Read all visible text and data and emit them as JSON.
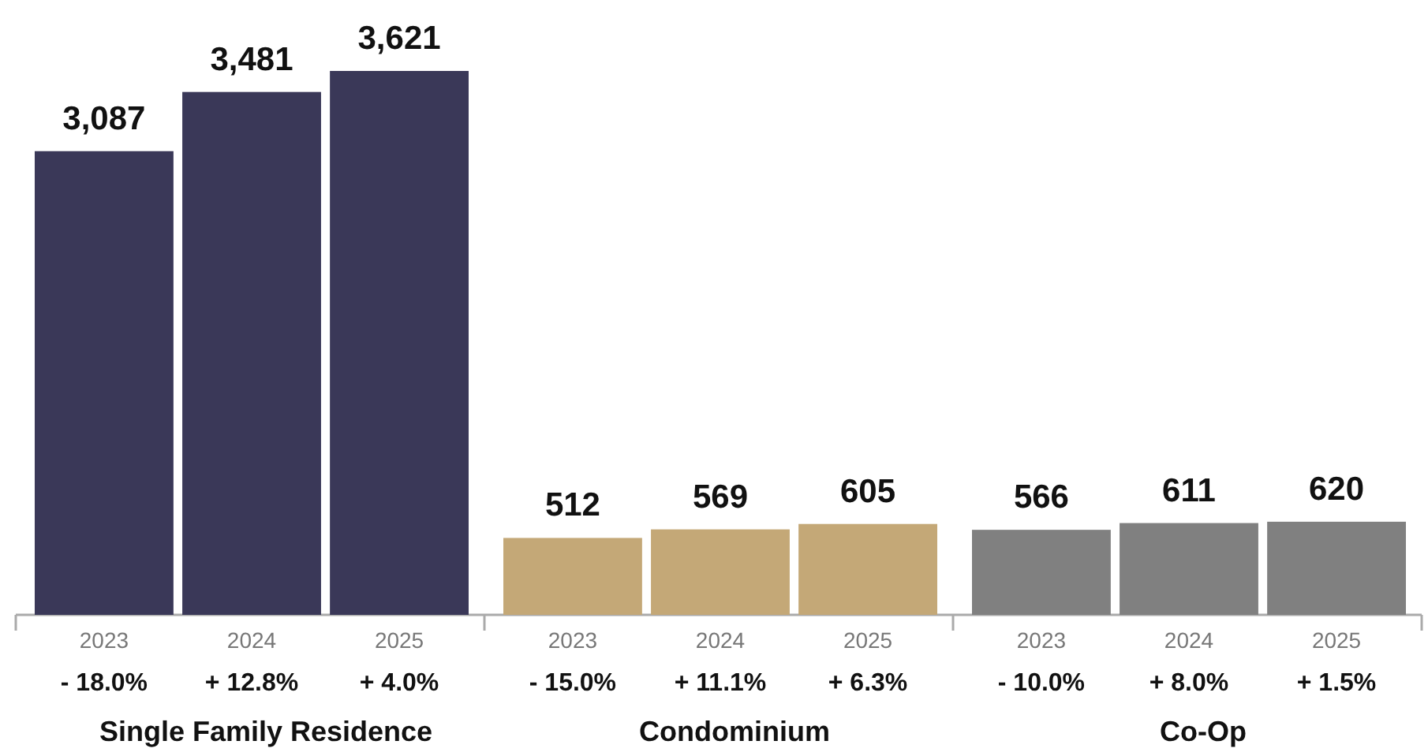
{
  "chart_data": [
    {
      "type": "bar",
      "xlabel": "Single Family Residence",
      "categories": [
        "2023",
        "2024",
        "2025"
      ],
      "values": [
        3087,
        3481,
        3621
      ],
      "value_labels": [
        "3,087",
        "3,481",
        "3,621"
      ],
      "color": "#3a3858",
      "annotations": [
        "- 18.0%",
        "+ 12.8%",
        "+ 4.0%"
      ]
    },
    {
      "type": "bar",
      "xlabel": "Condominium",
      "categories": [
        "2023",
        "2024",
        "2025"
      ],
      "values": [
        512,
        569,
        605
      ],
      "value_labels": [
        "512",
        "569",
        "605"
      ],
      "color": "#c4a877",
      "annotations": [
        "- 15.0%",
        "+ 11.1%",
        "+ 6.3%"
      ]
    },
    {
      "type": "bar",
      "xlabel": "Co-Op",
      "categories": [
        "2023",
        "2024",
        "2025"
      ],
      "values": [
        566,
        611,
        620
      ],
      "value_labels": [
        "566",
        "611",
        "620"
      ],
      "color": "#808080",
      "annotations": [
        "- 10.0%",
        "+ 8.0%",
        "+ 1.5%"
      ]
    }
  ]
}
